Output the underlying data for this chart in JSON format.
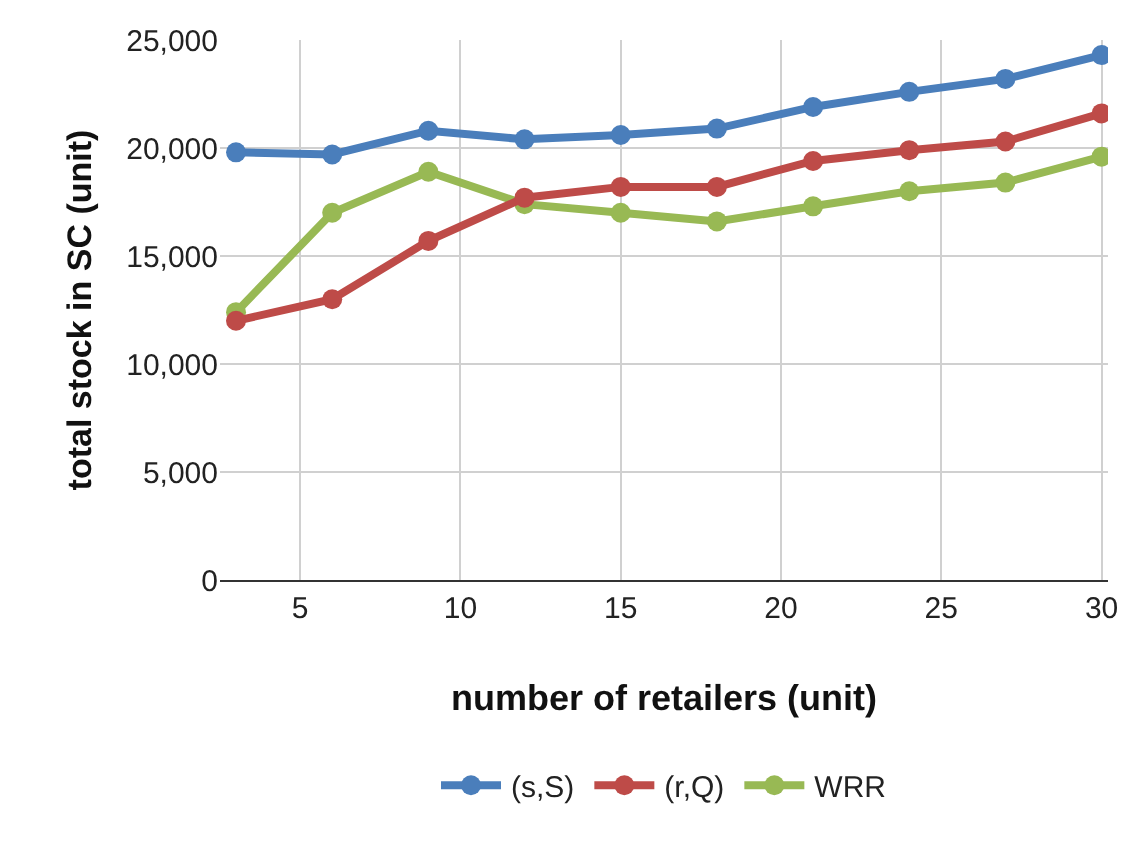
{
  "chart_data": {
    "type": "line",
    "xlabel": "number of retailers (unit)",
    "ylabel": "total stock in SC (unit)",
    "x": [
      3,
      6,
      9,
      12,
      15,
      18,
      21,
      24,
      27,
      30
    ],
    "series": [
      {
        "name": "(s,S)",
        "color": "#4a7ebb",
        "values": [
          19800,
          19700,
          20800,
          20400,
          20600,
          20900,
          21900,
          22600,
          23200,
          24300
        ]
      },
      {
        "name": "(r,Q)",
        "color": "#be4b48",
        "values": [
          12000,
          13000,
          15700,
          17700,
          18200,
          18200,
          19400,
          19900,
          20300,
          21600
        ]
      },
      {
        "name": "WRR",
        "color": "#98b954",
        "values": [
          12400,
          17000,
          18900,
          17400,
          17000,
          16600,
          17300,
          18000,
          18400,
          19600
        ]
      }
    ],
    "xlim": [
      2.5,
      30.2
    ],
    "xticks": [
      5,
      10,
      15,
      20,
      25,
      30
    ],
    "ylim": [
      0,
      25000
    ],
    "yticks": [
      {
        "value": 0,
        "label": "0"
      },
      {
        "value": 5000,
        "label": "5,000"
      },
      {
        "value": 10000,
        "label": "10,000"
      },
      {
        "value": 15000,
        "label": "15,000"
      },
      {
        "value": 20000,
        "label": "20,000"
      },
      {
        "value": 25000,
        "label": "25,000"
      }
    ],
    "grid": true,
    "legend": "bottom",
    "marker": "circle",
    "line_style": "solid"
  }
}
